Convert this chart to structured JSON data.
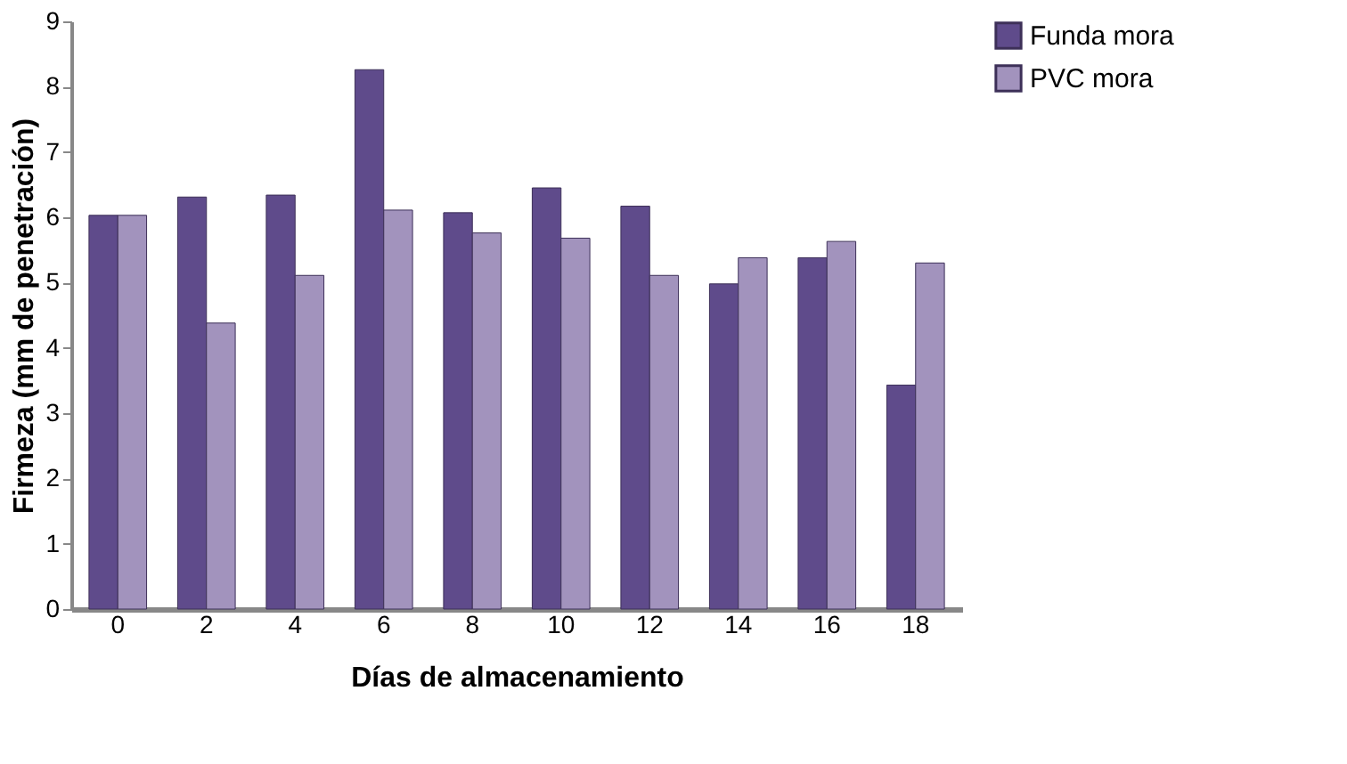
{
  "chart_data": {
    "type": "bar",
    "xlabel": "Días de almacenamiento",
    "ylabel": "Firmeza (mm de penetración)",
    "categories": [
      "0",
      "2",
      "4",
      "6",
      "8",
      "10",
      "12",
      "14",
      "16",
      "18"
    ],
    "series": [
      {
        "name": "Funda mora",
        "color": "#5f4b8b",
        "values": [
          6.03,
          6.31,
          6.34,
          8.26,
          6.07,
          6.45,
          6.17,
          4.98,
          5.38,
          3.43
        ]
      },
      {
        "name": "PVC mora",
        "color": "#a293bd",
        "values": [
          6.03,
          4.38,
          5.11,
          6.11,
          5.76,
          5.68,
          5.11,
          5.38,
          5.63,
          5.3
        ]
      }
    ],
    "ylim": [
      0,
      9
    ],
    "yticks": [
      0,
      1,
      2,
      3,
      4,
      5,
      6,
      7,
      8,
      9
    ],
    "grid": false,
    "legend": "right"
  }
}
